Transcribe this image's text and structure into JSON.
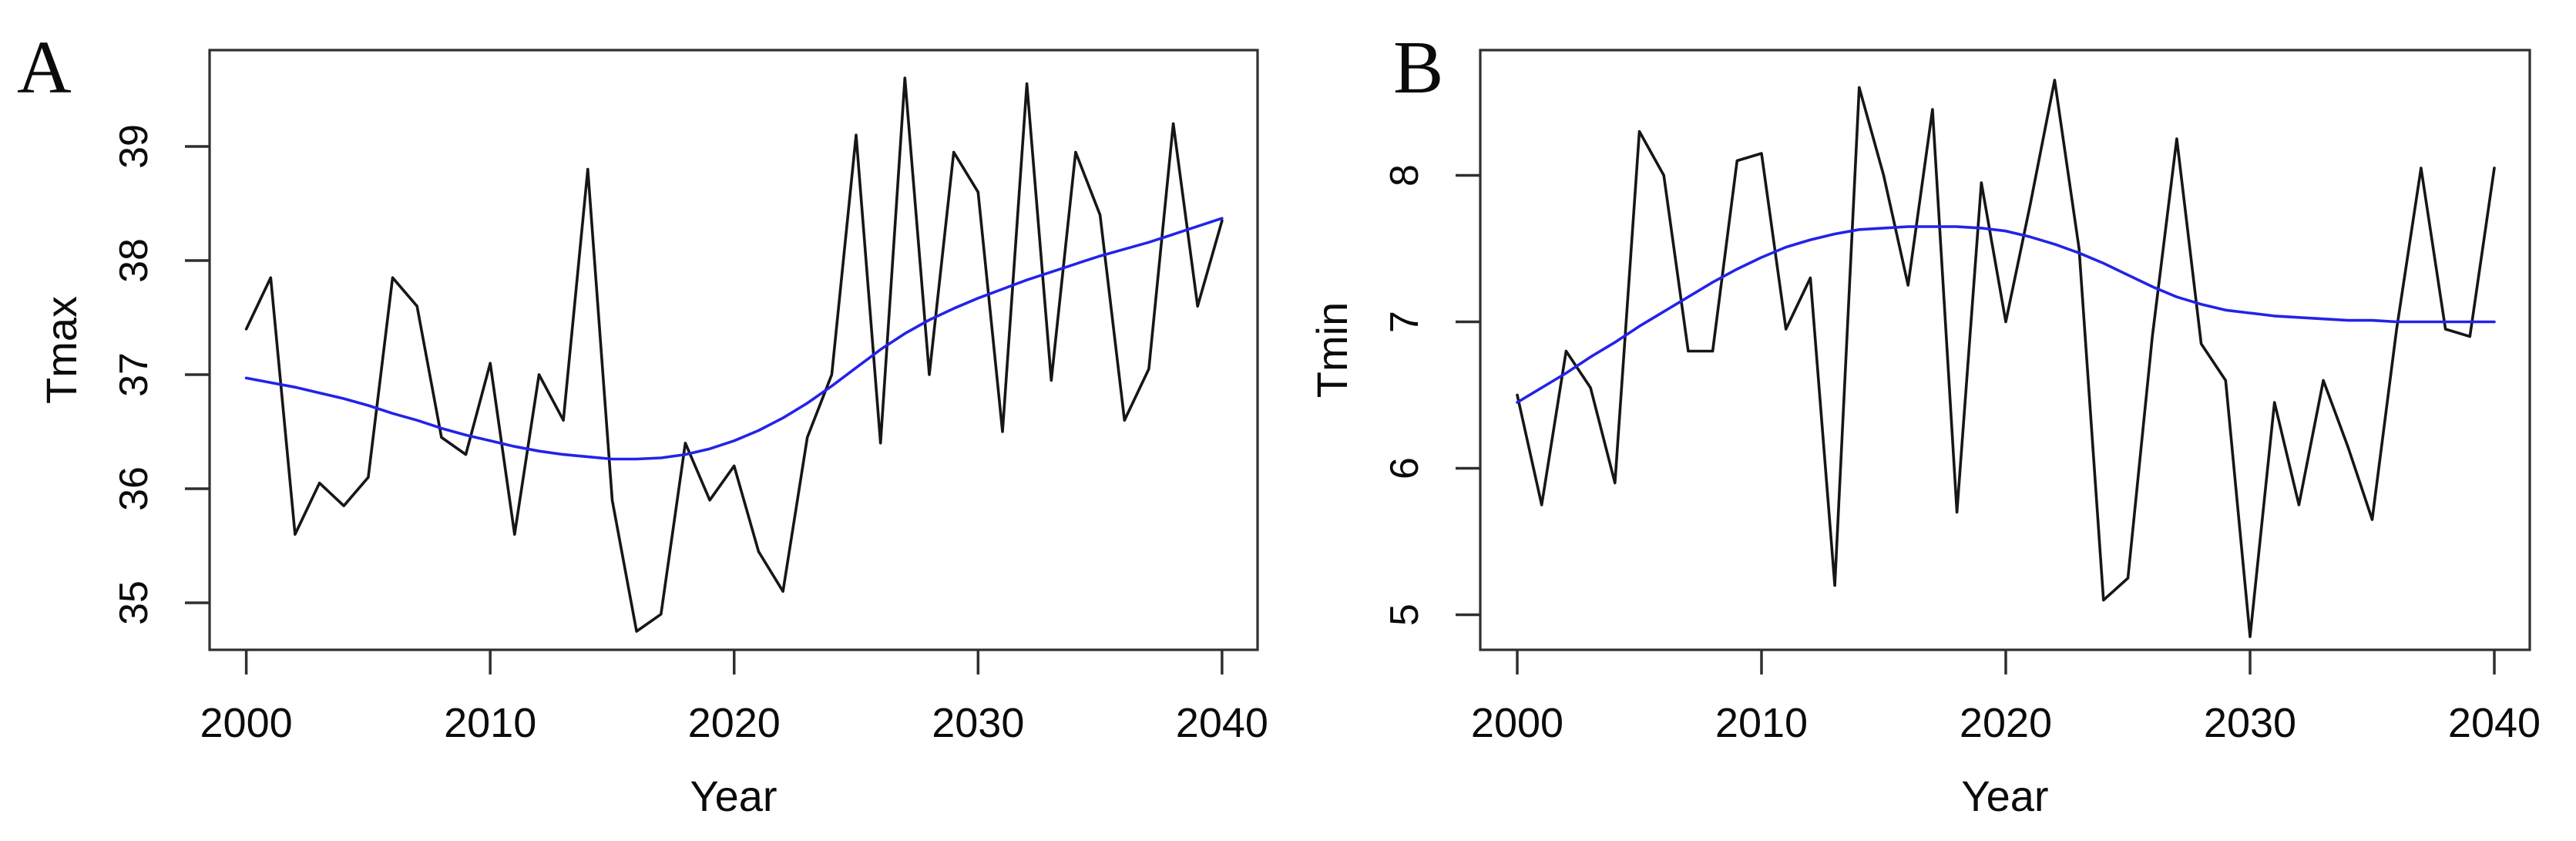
{
  "figure": {
    "background": "#ffffff",
    "series_color": "#161616",
    "trend_color": "#2323e8",
    "axis_color": "#2f2f2f",
    "text_color": "#0b0b0b"
  },
  "panels": [
    {
      "letter": "A",
      "ylabel": "Tmax",
      "xlabel": "Year",
      "yticks": [
        35,
        36,
        37,
        38,
        39
      ],
      "xticks": [
        2000,
        2010,
        2020,
        2030,
        2040
      ]
    },
    {
      "letter": "B",
      "ylabel": "Tmin",
      "xlabel": "Year",
      "yticks": [
        5,
        6,
        7,
        8
      ],
      "xticks": [
        2000,
        2010,
        2020,
        2030,
        2040
      ]
    }
  ],
  "chart_data": [
    {
      "type": "line",
      "title": "",
      "xlabel": "Year",
      "ylabel": "Tmax",
      "xlim": [
        1998.4,
        2041.6
      ],
      "ylim": [
        34.6,
        39.85
      ],
      "grid": false,
      "legend": "none",
      "x": [
        2000,
        2001,
        2002,
        2003,
        2004,
        2005,
        2006,
        2007,
        2008,
        2009,
        2010,
        2011,
        2012,
        2013,
        2014,
        2015,
        2016,
        2017,
        2018,
        2019,
        2020,
        2021,
        2022,
        2023,
        2024,
        2025,
        2026,
        2027,
        2028,
        2029,
        2030,
        2031,
        2032,
        2033,
        2034,
        2035,
        2036,
        2037,
        2038,
        2039,
        2040
      ],
      "series": [
        {
          "name": "annual Tmax",
          "color": "#161616",
          "values": [
            37.4,
            37.85,
            35.6,
            36.05,
            35.85,
            36.1,
            37.85,
            37.6,
            36.45,
            36.3,
            37.1,
            35.6,
            37.0,
            36.6,
            38.8,
            35.9,
            34.75,
            34.9,
            36.4,
            35.9,
            36.2,
            35.45,
            35.1,
            36.45,
            37.0,
            39.1,
            36.4,
            39.6,
            37.0,
            38.95,
            38.6,
            36.5,
            39.55,
            36.95,
            38.95,
            38.4,
            36.6,
            37.05,
            39.2,
            37.6,
            38.35
          ]
        },
        {
          "name": "loess trend",
          "color": "#2323e8",
          "values": [
            36.97,
            36.93,
            36.89,
            36.84,
            36.79,
            36.73,
            36.66,
            36.6,
            36.53,
            36.47,
            36.42,
            36.37,
            36.33,
            36.3,
            36.28,
            36.26,
            36.26,
            36.27,
            36.3,
            36.35,
            36.42,
            36.51,
            36.62,
            36.75,
            36.9,
            37.06,
            37.22,
            37.36,
            37.48,
            37.58,
            37.67,
            37.75,
            37.83,
            37.9,
            37.97,
            38.04,
            38.1,
            38.16,
            38.23,
            38.3,
            38.37
          ]
        }
      ]
    },
    {
      "type": "line",
      "title": "",
      "xlabel": "Year",
      "ylabel": "Tmin",
      "xlim": [
        1998.4,
        2041.6
      ],
      "ylim": [
        4.75,
        8.85
      ],
      "grid": false,
      "legend": "none",
      "x": [
        2000,
        2001,
        2002,
        2003,
        2004,
        2005,
        2006,
        2007,
        2008,
        2009,
        2010,
        2011,
        2012,
        2013,
        2014,
        2015,
        2016,
        2017,
        2018,
        2019,
        2020,
        2021,
        2022,
        2023,
        2024,
        2025,
        2026,
        2027,
        2028,
        2029,
        2030,
        2031,
        2032,
        2033,
        2034,
        2035,
        2036,
        2037,
        2038,
        2039,
        2040
      ],
      "series": [
        {
          "name": "annual Tmin",
          "color": "#161616",
          "values": [
            6.5,
            5.75,
            6.8,
            6.55,
            5.9,
            8.3,
            8.0,
            6.8,
            6.8,
            8.1,
            8.15,
            6.95,
            7.3,
            5.2,
            8.6,
            8.0,
            7.25,
            8.45,
            5.7,
            7.95,
            7.0,
            7.8,
            8.65,
            7.5,
            5.1,
            5.25,
            6.9,
            8.25,
            6.85,
            6.6,
            4.85,
            6.45,
            5.75,
            6.6,
            6.15,
            5.65,
            6.95,
            8.05,
            6.95,
            6.9,
            8.05
          ]
        },
        {
          "name": "loess trend",
          "color": "#2323e8",
          "values": [
            6.45,
            6.55,
            6.65,
            6.76,
            6.86,
            6.97,
            7.07,
            7.17,
            7.27,
            7.36,
            7.44,
            7.51,
            7.56,
            7.6,
            7.63,
            7.64,
            7.65,
            7.65,
            7.65,
            7.64,
            7.62,
            7.58,
            7.53,
            7.47,
            7.4,
            7.32,
            7.24,
            7.17,
            7.12,
            7.08,
            7.06,
            7.04,
            7.03,
            7.02,
            7.01,
            7.01,
            7.0,
            7.0,
            7.0,
            7.0,
            7.0
          ]
        }
      ]
    }
  ]
}
